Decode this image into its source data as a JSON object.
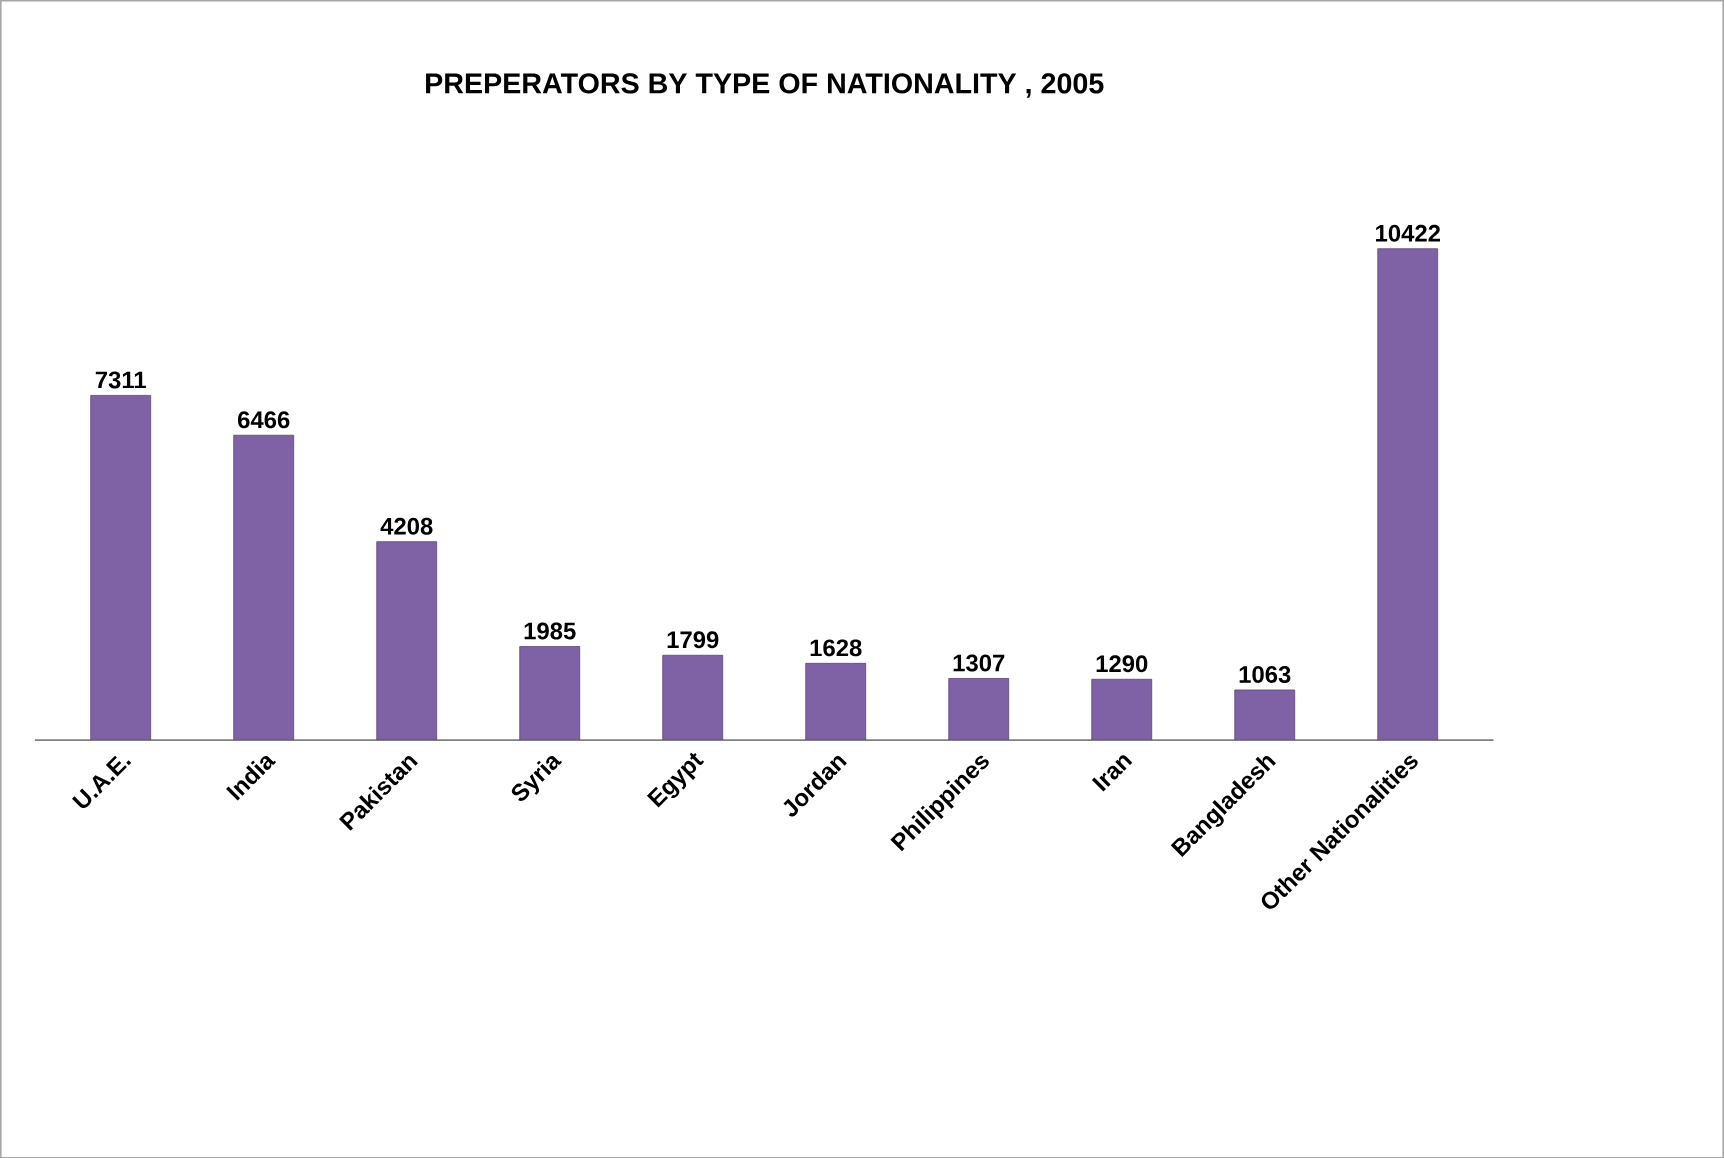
{
  "chart_data": {
    "type": "bar",
    "title": "PREPERATORS BY TYPE OF NATIONALITY , 2005",
    "categories": [
      "U.A.E.",
      "India",
      "Pakistan",
      "Syria",
      "Egypt",
      "Jordan",
      "Philippines",
      "Iran",
      "Bangladesh",
      "Other Nationalities"
    ],
    "values": [
      7311,
      6466,
      4208,
      1985,
      1799,
      1628,
      1307,
      1290,
      1063,
      10422
    ],
    "color": "#7f62a6",
    "data_labels": true
  }
}
